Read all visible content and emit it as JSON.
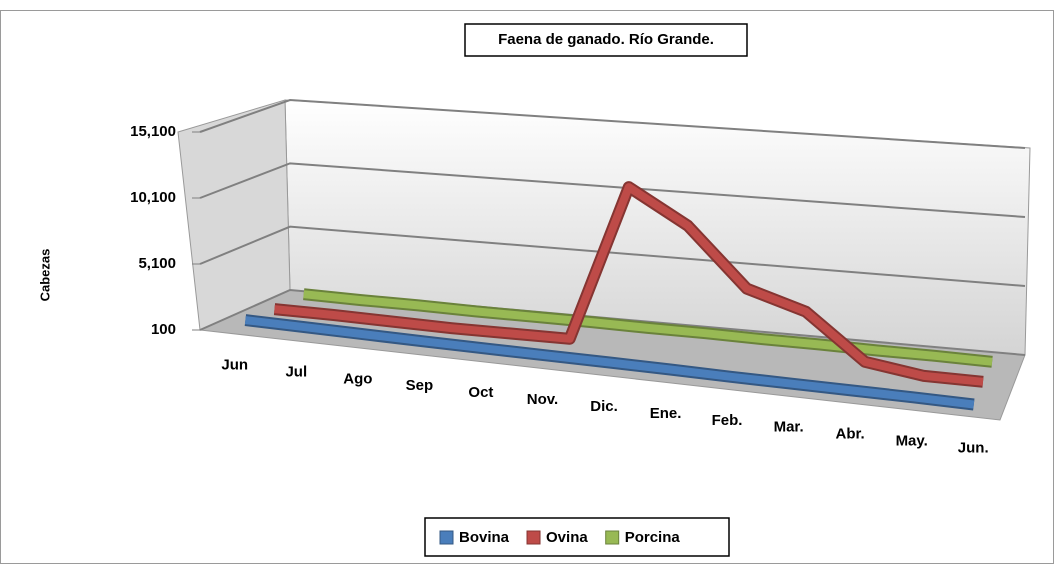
{
  "chart_data": {
    "type": "line3d",
    "title": "Faena de ganado. Río Grande.",
    "ylabel": "Cabezas",
    "categories": [
      "Jun",
      "Jul",
      "Ago",
      "Sep",
      "Oct",
      "Nov.",
      "Dic.",
      "Ene.",
      "Feb.",
      "Mar.",
      "Abr.",
      "May.",
      "Jun."
    ],
    "series": [
      {
        "name": "Bovina",
        "color": "#4a7ebb",
        "values": [
          600,
          550,
          500,
          450,
          420,
          400,
          380,
          350,
          300,
          280,
          260,
          250,
          200
        ]
      },
      {
        "name": "Ovina",
        "color": "#be4b48",
        "values": [
          400,
          400,
          350,
          300,
          350,
          400,
          12300,
          9800,
          5500,
          4200,
          900,
          300,
          300
        ]
      },
      {
        "name": "Porcina",
        "color": "#98b954",
        "values": [
          500,
          450,
          450,
          400,
          400,
          400,
          350,
          350,
          300,
          300,
          250,
          250,
          200
        ]
      }
    ],
    "ylim": [
      100,
      15100
    ],
    "yticks": [
      100,
      {
        "value": 5100,
        "label": "5,100"
      },
      {
        "value": 10100,
        "label": "10,100"
      },
      {
        "value": 15100,
        "label": "15,100"
      }
    ],
    "grid": true,
    "legend": "bottom"
  }
}
